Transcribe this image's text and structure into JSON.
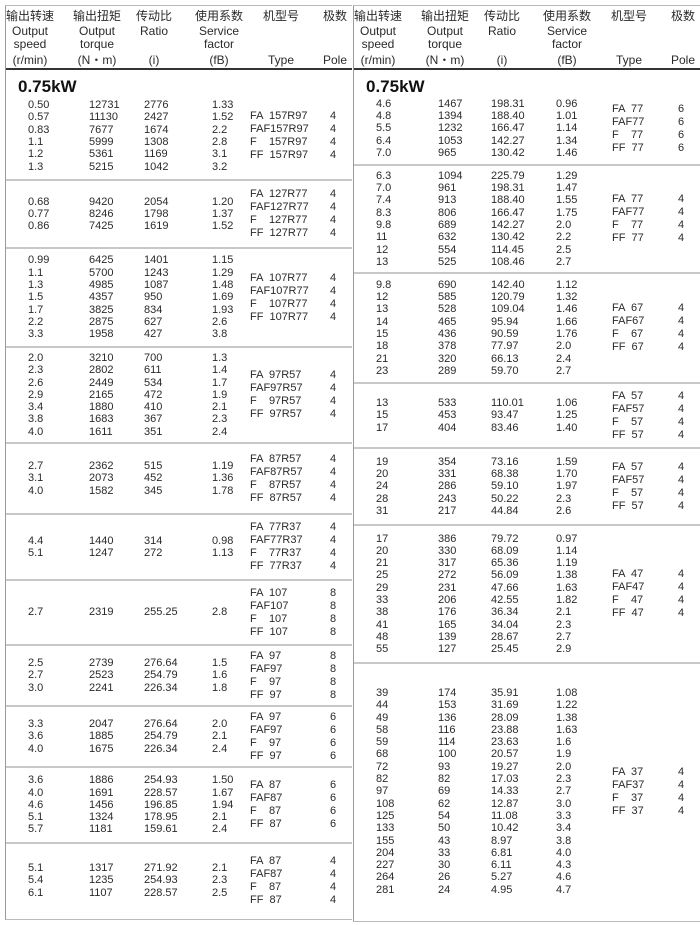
{
  "header": {
    "columns": [
      {
        "zh": "输出转速",
        "en": [
          "Output",
          "speed",
          "(r/min)"
        ]
      },
      {
        "zh": "输出扭矩",
        "en": [
          "Output",
          "torque",
          "(N・m)"
        ]
      },
      {
        "zh": "传动比",
        "en": [
          "Ratio",
          "",
          "(i)"
        ]
      },
      {
        "zh": "使用系数",
        "en": [
          "Service",
          "factor",
          "(fB)"
        ]
      },
      {
        "zh": "机型号",
        "en": [
          "",
          "",
          "Type"
        ]
      },
      {
        "zh": "极数",
        "en": [
          "",
          "",
          "Pole"
        ]
      }
    ]
  },
  "power_label": "0.75kW",
  "left": {
    "blocks": [
      {
        "rows": [
          [
            "0.50",
            "12731",
            "2776",
            "1.33"
          ],
          [
            "0.57",
            "11130",
            "2427",
            "1.52"
          ],
          [
            "0.83",
            "7677",
            "1674",
            "2.2"
          ],
          [
            "1.1",
            "5999",
            "1308",
            "2.8"
          ],
          [
            "1.2",
            "5361",
            "1169",
            "3.1"
          ],
          [
            "1.3",
            "5215",
            "1042",
            "3.2"
          ]
        ],
        "types": [
          [
            "FA  157R97",
            "4"
          ],
          [
            "FAF157R97",
            "4"
          ],
          [
            "F    157R97",
            "4"
          ],
          [
            "FF  157R97",
            "4"
          ]
        ]
      },
      {
        "rows": [
          [
            "0.68",
            "9420",
            "2054",
            "1.20"
          ],
          [
            "0.77",
            "8246",
            "1798",
            "1.37"
          ],
          [
            "0.86",
            "7425",
            "1619",
            "1.52"
          ]
        ],
        "types": [
          [
            "FA  127R77",
            "4"
          ],
          [
            "FAF127R77",
            "4"
          ],
          [
            "F    127R77",
            "4"
          ],
          [
            "FF  127R77",
            "4"
          ]
        ]
      },
      {
        "rows": [
          [
            "0.99",
            "6425",
            "1401",
            "1.15"
          ],
          [
            "1.1",
            "5700",
            "1243",
            "1.29"
          ],
          [
            "1.3",
            "4985",
            "1087",
            "1.48"
          ],
          [
            "1.5",
            "4357",
            "950",
            "1.69"
          ],
          [
            "1.7",
            "3825",
            "834",
            "1.93"
          ],
          [
            "2.2",
            "2875",
            "627",
            "2.6"
          ],
          [
            "3.3",
            "1958",
            "427",
            "3.8"
          ]
        ],
        "types": [
          [
            "FA  107R77",
            "4"
          ],
          [
            "FAF107R77",
            "4"
          ],
          [
            "F    107R77",
            "4"
          ],
          [
            "FF  107R77",
            "4"
          ]
        ]
      },
      {
        "rows": [
          [
            "2.0",
            "3210",
            "700",
            "1.3"
          ],
          [
            "2.3",
            "2802",
            "611",
            "1.4"
          ],
          [
            "2.6",
            "2449",
            "534",
            "1.7"
          ],
          [
            "2.9",
            "2165",
            "472",
            "1.9"
          ],
          [
            "3.4",
            "1880",
            "410",
            "2.1"
          ],
          [
            "3.8",
            "1683",
            "367",
            "2.3"
          ],
          [
            "4.0",
            "1611",
            "351",
            "2.4"
          ]
        ],
        "types": [
          [
            "FA  97R57",
            "4"
          ],
          [
            "FAF97R57",
            "4"
          ],
          [
            "F    97R57",
            "4"
          ],
          [
            "FF  97R57",
            "4"
          ]
        ]
      },
      {
        "rows": [
          [
            "2.7",
            "2362",
            "515",
            "1.19"
          ],
          [
            "3.1",
            "2073",
            "452",
            "1.36"
          ],
          [
            "4.0",
            "1582",
            "345",
            "1.78"
          ]
        ],
        "types": [
          [
            "FA  87R57",
            "4"
          ],
          [
            "FAF87R57",
            "4"
          ],
          [
            "F    87R57",
            "4"
          ],
          [
            "FF  87R57",
            "4"
          ]
        ]
      },
      {
        "rows": [
          [
            "4.4",
            "1440",
            "314",
            "0.98"
          ],
          [
            "5.1",
            "1247",
            "272",
            "1.13"
          ]
        ],
        "types": [
          [
            "FA  77R37",
            "4"
          ],
          [
            "FAF77R37",
            "4"
          ],
          [
            "F    77R37",
            "4"
          ],
          [
            "FF  77R37",
            "4"
          ]
        ]
      },
      {
        "rows": [
          [
            "2.7",
            "2319",
            "255.25",
            "2.8"
          ]
        ],
        "types": [
          [
            "FA  107",
            "8"
          ],
          [
            "FAF107",
            "8"
          ],
          [
            "F    107",
            "8"
          ],
          [
            "FF  107",
            "8"
          ]
        ]
      },
      {
        "rows": [
          [
            "2.5",
            "2739",
            "276.64",
            "1.5"
          ],
          [
            "2.7",
            "2523",
            "254.79",
            "1.6"
          ],
          [
            "3.0",
            "2241",
            "226.34",
            "1.8"
          ]
        ],
        "types": [
          [
            "FA  97",
            "8"
          ],
          [
            "FAF97",
            "8"
          ],
          [
            "F    97",
            "8"
          ],
          [
            "FF  97",
            "8"
          ]
        ]
      },
      {
        "rows": [
          [
            "3.3",
            "2047",
            "276.64",
            "2.0"
          ],
          [
            "3.6",
            "1885",
            "254.79",
            "2.1"
          ],
          [
            "4.0",
            "1675",
            "226.34",
            "2.4"
          ]
        ],
        "types": [
          [
            "FA  97",
            "6"
          ],
          [
            "FAF97",
            "6"
          ],
          [
            "F    97",
            "6"
          ],
          [
            "FF  97",
            "6"
          ]
        ]
      },
      {
        "rows": [
          [
            "3.6",
            "1886",
            "254.93",
            "1.50"
          ],
          [
            "4.0",
            "1691",
            "228.57",
            "1.67"
          ],
          [
            "4.6",
            "1456",
            "196.85",
            "1.94"
          ],
          [
            "5.1",
            "1324",
            "178.95",
            "2.1"
          ],
          [
            "5.7",
            "1181",
            "159.61",
            "2.4"
          ]
        ],
        "types": [
          [
            "FA  87",
            "6"
          ],
          [
            "FAF87",
            "6"
          ],
          [
            "F    87",
            "6"
          ],
          [
            "FF  87",
            "6"
          ]
        ]
      },
      {
        "rows": [
          [
            "5.1",
            "1317",
            "271.92",
            "2.1"
          ],
          [
            "5.4",
            "1235",
            "254.93",
            "2.3"
          ],
          [
            "6.1",
            "1107",
            "228.57",
            "2.5"
          ]
        ],
        "types": [
          [
            "FA  87",
            "4"
          ],
          [
            "FAF87",
            "4"
          ],
          [
            "F    87",
            "4"
          ],
          [
            "FF  87",
            "4"
          ]
        ]
      }
    ]
  },
  "right": {
    "blocks": [
      {
        "rows": [
          [
            "4.6",
            "1467",
            "198.31",
            "0.96"
          ],
          [
            "4.8",
            "1394",
            "188.40",
            "1.01"
          ],
          [
            "5.5",
            "1232",
            "166.47",
            "1.14"
          ],
          [
            "6.4",
            "1053",
            "142.27",
            "1.34"
          ],
          [
            "7.0",
            "965",
            "130.42",
            "1.46"
          ]
        ],
        "types": [
          [
            "FA  77",
            "6"
          ],
          [
            "FAF77",
            "6"
          ],
          [
            "F    77",
            "6"
          ],
          [
            "FF  77",
            "6"
          ]
        ]
      },
      {
        "rows": [
          [
            "6.3",
            "1094",
            "225.79",
            "1.29"
          ],
          [
            "7.0",
            "961",
            "198.31",
            "1.47"
          ],
          [
            "7.4",
            "913",
            "188.40",
            "1.55"
          ],
          [
            "8.3",
            "806",
            "166.47",
            "1.75"
          ],
          [
            "9.8",
            "689",
            "142.27",
            "2.0"
          ],
          [
            "11",
            "632",
            "130.42",
            "2.2"
          ],
          [
            "12",
            "554",
            "114.45",
            "2.5"
          ],
          [
            "13",
            "525",
            "108.46",
            "2.7"
          ]
        ],
        "types": [
          [
            "FA  77",
            "4"
          ],
          [
            "FAF77",
            "4"
          ],
          [
            "F    77",
            "4"
          ],
          [
            "FF  77",
            "4"
          ]
        ]
      },
      {
        "rows": [
          [
            "9.8",
            "690",
            "142.40",
            "1.12"
          ],
          [
            "12",
            "585",
            "120.79",
            "1.32"
          ],
          [
            "13",
            "528",
            "109.04",
            "1.46"
          ],
          [
            "14",
            "465",
            "95.94",
            "1.66"
          ],
          [
            "15",
            "436",
            "90.59",
            "1.76"
          ],
          [
            "18",
            "378",
            "77.97",
            "2.0"
          ],
          [
            "21",
            "320",
            "66.13",
            "2.4"
          ],
          [
            "23",
            "289",
            "59.70",
            "2.7"
          ]
        ],
        "types": [
          [
            "FA  67",
            "4"
          ],
          [
            "FAF67",
            "4"
          ],
          [
            "F    67",
            "4"
          ],
          [
            "FF  67",
            "4"
          ]
        ]
      },
      {
        "rows": [
          [
            "13",
            "533",
            "110.01",
            "1.06"
          ],
          [
            "15",
            "453",
            "93.47",
            "1.25"
          ],
          [
            "17",
            "404",
            "83.46",
            "1.40"
          ]
        ],
        "types": [
          [
            "FA  57",
            "4"
          ],
          [
            "FAF57",
            "4"
          ],
          [
            "F    57",
            "4"
          ],
          [
            "FF  57",
            "4"
          ]
        ]
      },
      {
        "rows": [
          [
            "19",
            "354",
            "73.16",
            "1.59"
          ],
          [
            "20",
            "331",
            "68.38",
            "1.70"
          ],
          [
            "24",
            "286",
            "59.10",
            "1.97"
          ],
          [
            "28",
            "243",
            "50.22",
            "2.3"
          ],
          [
            "31",
            "217",
            "44.84",
            "2.6"
          ]
        ],
        "types": [
          [
            "FA  57",
            "4"
          ],
          [
            "FAF57",
            "4"
          ],
          [
            "F    57",
            "4"
          ],
          [
            "FF  57",
            "4"
          ]
        ]
      },
      {
        "rows": [
          [
            "17",
            "386",
            "79.72",
            "0.97"
          ],
          [
            "20",
            "330",
            "68.09",
            "1.14"
          ],
          [
            "21",
            "317",
            "65.36",
            "1.19"
          ],
          [
            "25",
            "272",
            "56.09",
            "1.38"
          ],
          [
            "29",
            "231",
            "47.66",
            "1.63"
          ],
          [
            "33",
            "206",
            "42.55",
            "1.82"
          ],
          [
            "38",
            "176",
            "36.34",
            "2.1"
          ],
          [
            "41",
            "165",
            "34.04",
            "2.3"
          ],
          [
            "48",
            "139",
            "28.67",
            "2.7"
          ],
          [
            "55",
            "127",
            "25.45",
            "2.9"
          ]
        ],
        "types": [
          [
            "FA  47",
            "4"
          ],
          [
            "FAF47",
            "4"
          ],
          [
            "F    47",
            "4"
          ],
          [
            "FF  47",
            "4"
          ]
        ]
      },
      {
        "rows": [
          [
            "39",
            "174",
            "35.91",
            "1.08"
          ],
          [
            "44",
            "153",
            "31.69",
            "1.22"
          ],
          [
            "49",
            "136",
            "28.09",
            "1.38"
          ],
          [
            "58",
            "116",
            "23.88",
            "1.63"
          ],
          [
            "59",
            "114",
            "23.63",
            "1.6"
          ],
          [
            "68",
            "100",
            "20.57",
            "1.9"
          ],
          [
            "72",
            "93",
            "19.27",
            "2.0"
          ],
          [
            "82",
            "82",
            "17.03",
            "2.3"
          ],
          [
            "97",
            "69",
            "14.33",
            "2.7"
          ],
          [
            "108",
            "62",
            "12.87",
            "3.0"
          ],
          [
            "125",
            "54",
            "11.08",
            "3.3"
          ],
          [
            "133",
            "50",
            "10.42",
            "3.4"
          ],
          [
            "155",
            "43",
            "8.97",
            "3.8"
          ],
          [
            "204",
            "33",
            "6.81",
            "4.0"
          ],
          [
            "227",
            "30",
            "6.11",
            "4.3"
          ],
          [
            "264",
            "26",
            "5.27",
            "4.6"
          ],
          [
            "281",
            "24",
            "4.95",
            "4.7"
          ]
        ],
        "types": [
          [
            "FA  37",
            "4"
          ],
          [
            "FAF37",
            "4"
          ],
          [
            "F    37",
            "4"
          ],
          [
            "FF  37",
            "4"
          ]
        ]
      }
    ]
  }
}
